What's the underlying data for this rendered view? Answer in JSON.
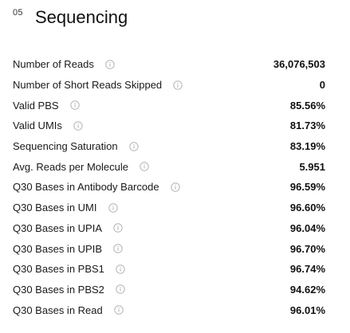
{
  "section": {
    "number": "05",
    "title": "Sequencing"
  },
  "metrics": [
    {
      "label": "Number of Reads",
      "value": "36,076,503",
      "icon": "info-icon"
    },
    {
      "label": "Number of Short Reads Skipped",
      "value": "0",
      "icon": "info-icon"
    },
    {
      "label": "Valid PBS",
      "value": "85.56%",
      "icon": "info-icon"
    },
    {
      "label": "Valid UMIs",
      "value": "81.73%",
      "icon": "info-icon"
    },
    {
      "label": "Sequencing Saturation",
      "value": "83.19%",
      "icon": "info-icon"
    },
    {
      "label": "Avg. Reads per Molecule",
      "value": "5.951",
      "icon": "info-icon"
    },
    {
      "label": "Q30 Bases in Antibody Barcode",
      "value": "96.59%",
      "icon": "info-icon"
    },
    {
      "label": "Q30 Bases in UMI",
      "value": "96.60%",
      "icon": "info-icon"
    },
    {
      "label": "Q30 Bases in UPIA",
      "value": "96.04%",
      "icon": "info-icon"
    },
    {
      "label": "Q30 Bases in UPIB",
      "value": "96.70%",
      "icon": "info-icon"
    },
    {
      "label": "Q30 Bases in PBS1",
      "value": "96.74%",
      "icon": "info-icon"
    },
    {
      "label": "Q30 Bases in PBS2",
      "value": "94.62%",
      "icon": "info-icon"
    },
    {
      "label": "Q30 Bases in Read",
      "value": "96.01%",
      "icon": "info-icon"
    }
  ],
  "colors": {
    "text": "#1a1a1a",
    "icon": "#b3b3b3"
  }
}
